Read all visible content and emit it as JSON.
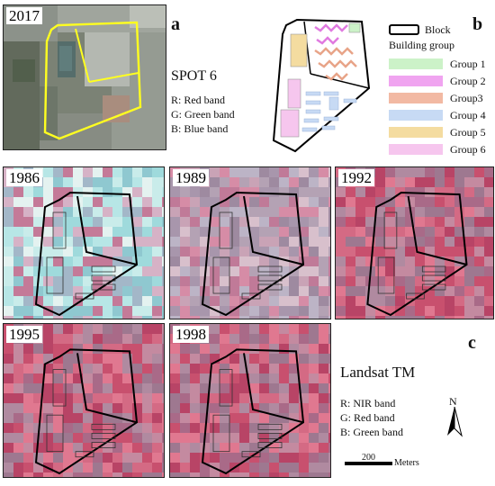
{
  "panel_a": {
    "letter": "a",
    "year": "2017",
    "sensor": "SPOT 6",
    "bands": [
      "R: Red band",
      "G: Green band",
      "B: Blue band"
    ]
  },
  "panel_b": {
    "letter": "b",
    "legend_block": "Block",
    "legend_title": "Building group",
    "groups": [
      {
        "label": "Group 1",
        "color": "#ccf2c8"
      },
      {
        "label": "Group 2",
        "color": "#f0a4f0"
      },
      {
        "label": "Group3",
        "color": "#f2b9a3"
      },
      {
        "label": "Group 4",
        "color": "#c7daf4"
      },
      {
        "label": "Group 5",
        "color": "#f4dca0"
      },
      {
        "label": "Group 6",
        "color": "#f6c6ee"
      }
    ]
  },
  "panel_c": {
    "letter": "c",
    "years": [
      "1986",
      "1989",
      "1992",
      "1995",
      "1998"
    ],
    "sensor": "Landsat TM",
    "bands": [
      "R: NIR band",
      "G: Red band",
      "B: Green band"
    ],
    "north": "N",
    "scale_value": "200",
    "scale_unit": "Meters"
  }
}
